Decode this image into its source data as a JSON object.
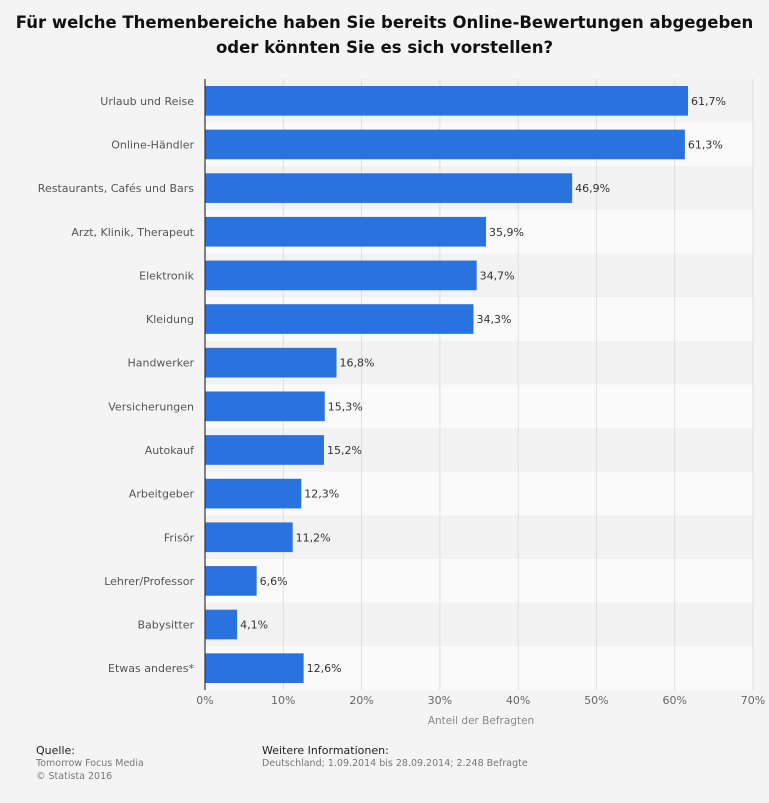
{
  "title": "Für welche Themenbereiche haben Sie bereits Online-Bewertungen abgegeben oder könnten Sie es sich vorstellen?",
  "chart_data": {
    "type": "bar",
    "orientation": "horizontal",
    "categories": [
      "Urlaub und Reise",
      "Online-Händler",
      "Restaurants, Cafés und Bars",
      "Arzt, Klinik, Therapeut",
      "Elektronik",
      "Kleidung",
      "Handwerker",
      "Versicherungen",
      "Autokauf",
      "Arbeitgeber",
      "Frisör",
      "Lehrer/Professor",
      "Babysitter",
      "Etwas anderes*"
    ],
    "values": [
      61.7,
      61.3,
      46.9,
      35.9,
      34.7,
      34.3,
      16.8,
      15.3,
      15.2,
      12.3,
      11.2,
      6.6,
      4.1,
      12.6
    ],
    "value_labels": [
      "61,7%",
      "61,3%",
      "46,9%",
      "35,9%",
      "34,7%",
      "34,3%",
      "16,8%",
      "15,3%",
      "15,2%",
      "12,3%",
      "11,2%",
      "6,6%",
      "4,1%",
      "12,6%"
    ],
    "xlim": [
      0,
      70
    ],
    "xticks": [
      0,
      10,
      20,
      30,
      40,
      50,
      60,
      70
    ],
    "xtick_labels": [
      "0%",
      "10%",
      "20%",
      "30%",
      "40%",
      "50%",
      "60%",
      "70%"
    ],
    "xlabel": "Anteil der Befragten",
    "ylabel": "",
    "bar_color": "#2a73de",
    "grid": true
  },
  "footer": {
    "source_heading": "Quelle:",
    "source_line1": "Tomorrow Focus Media",
    "source_line2": "© Statista 2016",
    "info_heading": "Weitere Informationen:",
    "info_line1": "Deutschland; 1.09.2014 bis 28.09.2014; 2.248 Befragte"
  }
}
